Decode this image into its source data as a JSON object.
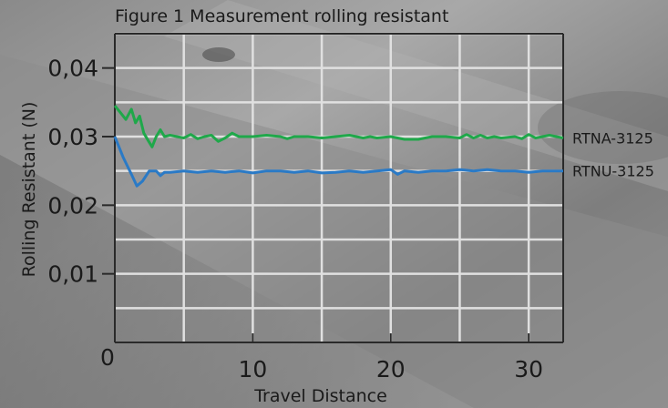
{
  "chart_data": {
    "type": "line",
    "title": "Figure 1 Measurement rolling resistant",
    "xlabel": "Travel Distance",
    "ylabel": "Rolling Resistant (N)",
    "xlim": [
      0,
      32.5
    ],
    "ylim": [
      0,
      0.045
    ],
    "xticks": [
      0,
      10,
      20,
      30
    ],
    "xtick_labels": [
      "0",
      "10",
      "20",
      "30"
    ],
    "yticks": [
      0.01,
      0.02,
      0.03,
      0.04
    ],
    "ytick_labels": [
      "0,01",
      "0,02",
      "0,03",
      "0,04"
    ],
    "grid": true,
    "legend": "labels at right end of lines",
    "series": [
      {
        "name": "RTNA-3125",
        "color": "#1fa84a",
        "x": [
          0,
          0.4,
          0.8,
          1.2,
          1.5,
          1.8,
          2.1,
          2.4,
          2.7,
          3.0,
          3.3,
          3.6,
          4.0,
          4.5,
          5.0,
          5.5,
          6.0,
          6.5,
          7.0,
          7.5,
          8.0,
          8.5,
          9.0,
          10,
          11,
          12,
          12.5,
          13,
          14,
          15,
          16,
          17,
          18,
          18.5,
          19,
          20,
          21,
          22,
          23,
          24,
          25,
          25.5,
          26,
          26.5,
          27,
          27.5,
          28,
          29,
          29.5,
          30,
          30.5,
          31,
          31.5,
          32,
          32.5
        ],
        "values": [
          0.0345,
          0.0335,
          0.0325,
          0.034,
          0.032,
          0.033,
          0.0305,
          0.0295,
          0.0285,
          0.03,
          0.031,
          0.03,
          0.0302,
          0.03,
          0.0298,
          0.0303,
          0.0297,
          0.03,
          0.0302,
          0.0293,
          0.0298,
          0.0305,
          0.03,
          0.03,
          0.0302,
          0.03,
          0.0297,
          0.03,
          0.03,
          0.0298,
          0.03,
          0.0302,
          0.0298,
          0.03,
          0.0298,
          0.03,
          0.0296,
          0.0296,
          0.03,
          0.03,
          0.0298,
          0.0303,
          0.0298,
          0.0302,
          0.0298,
          0.03,
          0.0298,
          0.03,
          0.0297,
          0.0303,
          0.0298,
          0.03,
          0.0302,
          0.03,
          0.0298
        ]
      },
      {
        "name": "RTNU-3125",
        "color": "#2a7ac6",
        "x": [
          0,
          0.6,
          1.2,
          1.6,
          2.0,
          2.5,
          3.0,
          3.3,
          3.6,
          4.0,
          5.0,
          6.0,
          7.0,
          8.0,
          9.0,
          10,
          11,
          12,
          13,
          14,
          15,
          16,
          17,
          18,
          19,
          20,
          20.5,
          21,
          22,
          23,
          24,
          25,
          26,
          27,
          28,
          29,
          30,
          31,
          32,
          32.5
        ],
        "values": [
          0.03,
          0.027,
          0.0245,
          0.0228,
          0.0235,
          0.025,
          0.025,
          0.0243,
          0.0248,
          0.0248,
          0.025,
          0.0248,
          0.025,
          0.0248,
          0.025,
          0.0247,
          0.025,
          0.025,
          0.0248,
          0.025,
          0.0247,
          0.0248,
          0.025,
          0.0248,
          0.025,
          0.0252,
          0.0245,
          0.025,
          0.0248,
          0.025,
          0.025,
          0.0252,
          0.025,
          0.0252,
          0.025,
          0.025,
          0.0248,
          0.025,
          0.025,
          0.025
        ]
      }
    ]
  },
  "colors": {
    "grid": "#e0e0e0",
    "axis": "#2a2a2a",
    "text": "#1a1a1a"
  }
}
